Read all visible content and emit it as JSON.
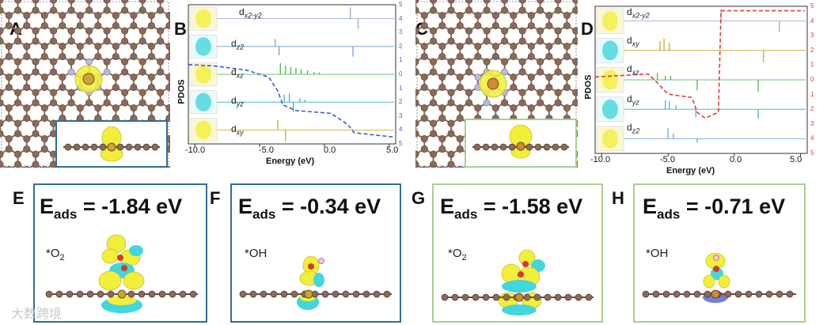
{
  "panel_labels": [
    "A",
    "B",
    "C",
    "D",
    "E",
    "F",
    "G",
    "H"
  ],
  "energy_axis": {
    "xlabel": "Energy (eV)",
    "ylabel": "PDOS",
    "ticks": [
      "-10.0",
      "-5.0",
      "0.0",
      "5.0"
    ]
  },
  "panel_B": {
    "orbitals": [
      {
        "main": "d",
        "sub": "x2-y2"
      },
      {
        "main": "d",
        "sub": "z2"
      },
      {
        "main": "d",
        "sub": "xz"
      },
      {
        "main": "d",
        "sub": "yz"
      },
      {
        "main": "d",
        "sub": "xy"
      }
    ],
    "right_ticks": [
      "5",
      "4",
      "3",
      "2",
      "1",
      "0",
      "1",
      "2",
      "3",
      "4",
      "5"
    ]
  },
  "panel_D": {
    "orbitals": [
      {
        "main": "d",
        "sub": "x2-y2"
      },
      {
        "main": "d",
        "sub": "xy"
      },
      {
        "main": "d",
        "sub": "xz"
      },
      {
        "main": "d",
        "sub": "yz"
      },
      {
        "main": "d",
        "sub": "z2"
      }
    ],
    "right_ticks": [
      "5",
      "4",
      "3",
      "2",
      "1",
      "0",
      "1",
      "2",
      "3",
      "4",
      "5"
    ]
  },
  "adsorption": [
    {
      "label": "E",
      "eads_main": "E",
      "eads_sub": "ads",
      "eads_value": " = -1.84 eV",
      "species_main": "*O",
      "species_sub": "2"
    },
    {
      "label": "F",
      "eads_main": "E",
      "eads_sub": "ads",
      "eads_value": " = -0.34 eV",
      "species_main": "*OH",
      "species_sub": ""
    },
    {
      "label": "G",
      "eads_main": "E",
      "eads_sub": "ads",
      "eads_value": " = -1.58 eV",
      "species_main": "*O",
      "species_sub": "2"
    },
    {
      "label": "H",
      "eads_main": "E",
      "eads_sub": "ads",
      "eads_value": " = -0.71 eV",
      "species_main": "*OH",
      "species_sub": ""
    }
  ],
  "watermark": "大数跨境",
  "colors": {
    "carbon": "#8a6a5c",
    "nitrogen": "#b8bcd8",
    "metal": "#c9a43a",
    "density_yellow": "#f2ef3a",
    "density_cyan": "#43d6dc",
    "frame_blue": "#2e6f96",
    "frame_green": "#a9d08e",
    "integrated_blue": "#3a5bd9",
    "integrated_red": "#e03b3b",
    "pdos_grey": "#8da0cb",
    "pdos_blue": "#6a9cd0",
    "pdos_green": "#3fae49",
    "pdos_teal": "#2bb3b8",
    "pdos_gold": "#c7a21d"
  }
}
